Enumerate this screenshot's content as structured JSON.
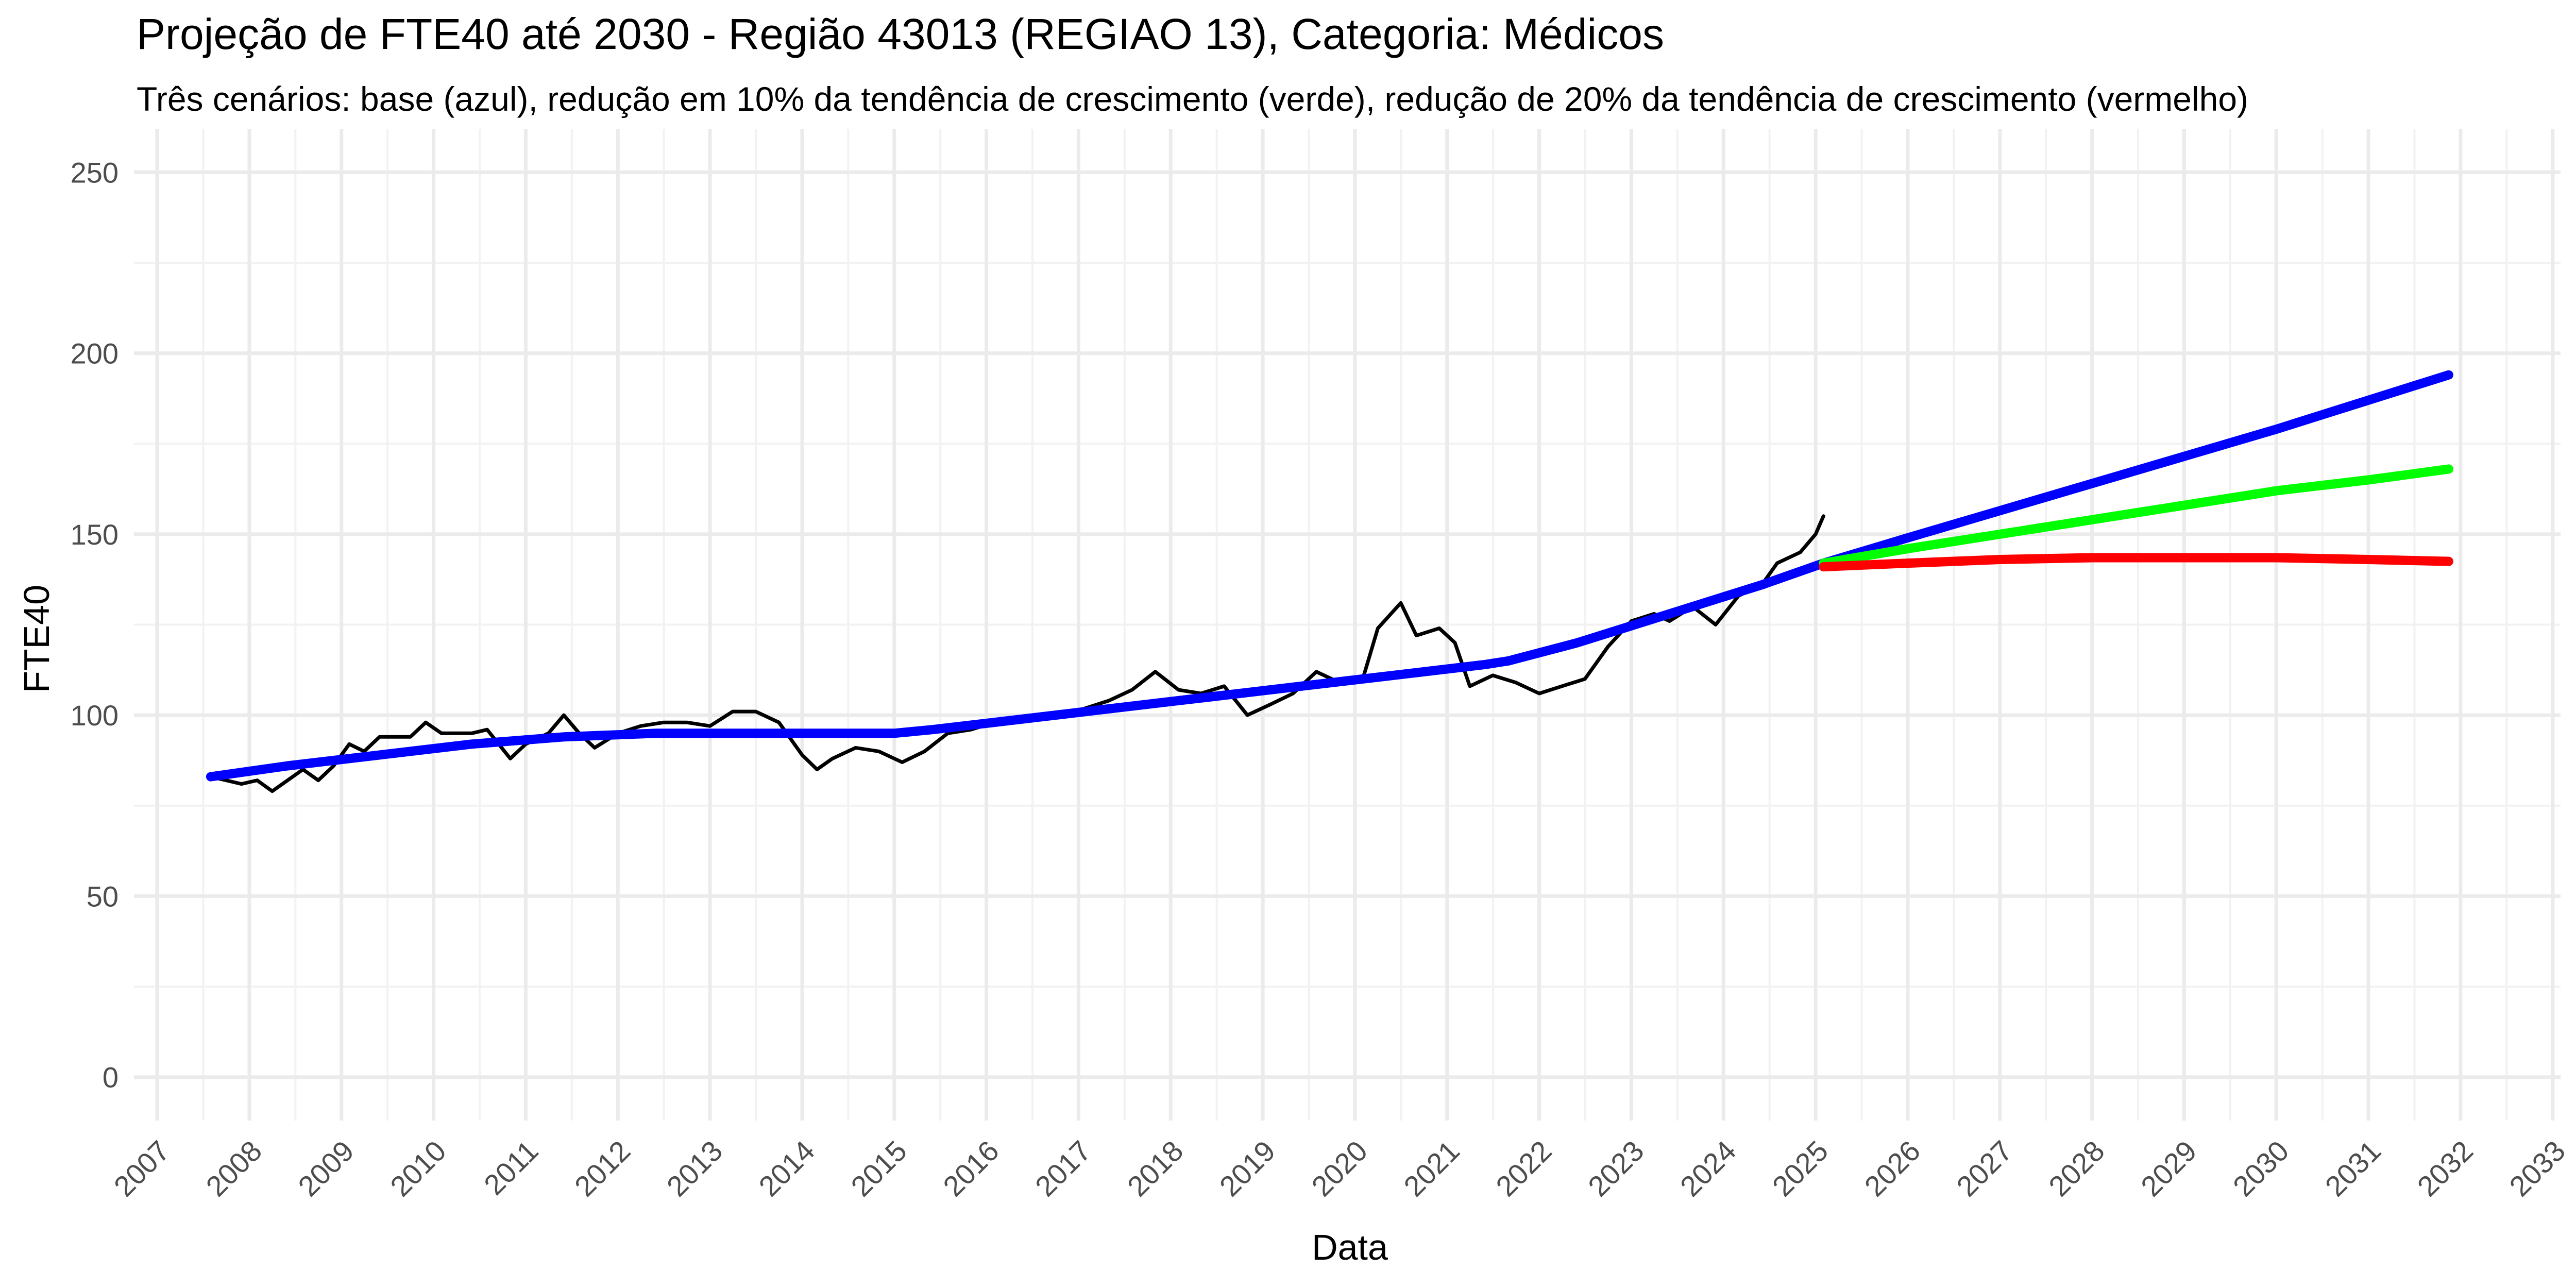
{
  "chart_data": {
    "type": "line",
    "title": "Projeção de FTE40 até 2030 - Região 43013 (REGIAO 13), Categoria: Médicos",
    "subtitle": "Três cenários: base (azul), redução em 10% da tendência de crescimento (verde), redução de 20% da tendência de crescimento (vermelho)",
    "xlabel": "Data",
    "ylabel": "FTE40",
    "xlim": [
      "2006-10-01",
      "2033-02-01"
    ],
    "ylim": [
      -12,
      262
    ],
    "y_ticks": [
      0,
      50,
      100,
      150,
      200,
      250
    ],
    "x_ticks": [
      "2007",
      "2008",
      "2009",
      "2010",
      "2011",
      "2012",
      "2013",
      "2014",
      "2015",
      "2016",
      "2017",
      "2018",
      "2019",
      "2020",
      "2021",
      "2022",
      "2023",
      "2024",
      "2025",
      "2026",
      "2027",
      "2028",
      "2029",
      "2030",
      "2031",
      "2032",
      "2033"
    ],
    "grid": true,
    "legend": "none",
    "series": [
      {
        "color": "#000000",
        "points": [
          [
            "2007-08-01",
            83
          ],
          [
            "2007-10-01",
            82
          ],
          [
            "2007-12-01",
            81
          ],
          [
            "2008-02-01",
            82
          ],
          [
            "2008-04-01",
            79
          ],
          [
            "2008-06-01",
            82
          ],
          [
            "2008-08-01",
            85
          ],
          [
            "2008-10-01",
            82
          ],
          [
            "2008-12-01",
            86
          ],
          [
            "2009-02-01",
            92
          ],
          [
            "2009-04-01",
            90
          ],
          [
            "2009-06-01",
            94
          ],
          [
            "2009-08-01",
            94
          ],
          [
            "2009-10-01",
            94
          ],
          [
            "2009-12-01",
            98
          ],
          [
            "2010-02-01",
            95
          ],
          [
            "2010-04-01",
            95
          ],
          [
            "2010-06-01",
            95
          ],
          [
            "2010-08-01",
            96
          ],
          [
            "2010-11-01",
            88
          ],
          [
            "2011-01-01",
            92
          ],
          [
            "2011-04-01",
            95
          ],
          [
            "2011-06-01",
            100
          ],
          [
            "2011-08-01",
            95
          ],
          [
            "2011-10-01",
            91
          ],
          [
            "2012-01-01",
            95
          ],
          [
            "2012-04-01",
            97
          ],
          [
            "2012-07-01",
            98
          ],
          [
            "2012-10-01",
            98
          ],
          [
            "2013-01-01",
            97
          ],
          [
            "2013-04-01",
            101
          ],
          [
            "2013-07-01",
            101
          ],
          [
            "2013-10-01",
            98
          ],
          [
            "2014-01-01",
            89
          ],
          [
            "2014-03-01",
            85
          ],
          [
            "2014-05-01",
            88
          ],
          [
            "2014-08-01",
            91
          ],
          [
            "2014-11-01",
            90
          ],
          [
            "2015-02-01",
            87
          ],
          [
            "2015-05-01",
            90
          ],
          [
            "2015-08-01",
            95
          ],
          [
            "2015-11-01",
            96
          ],
          [
            "2016-02-01",
            98
          ],
          [
            "2016-05-01",
            99
          ],
          [
            "2016-08-01",
            100
          ],
          [
            "2016-11-01",
            100
          ],
          [
            "2017-02-01",
            102
          ],
          [
            "2017-05-01",
            104
          ],
          [
            "2017-08-01",
            107
          ],
          [
            "2017-11-01",
            112
          ],
          [
            "2018-02-01",
            107
          ],
          [
            "2018-05-01",
            106
          ],
          [
            "2018-08-01",
            108
          ],
          [
            "2018-11-01",
            100
          ],
          [
            "2019-02-01",
            103
          ],
          [
            "2019-05-01",
            106
          ],
          [
            "2019-08-01",
            112
          ],
          [
            "2019-11-01",
            109
          ],
          [
            "2020-02-01",
            110
          ],
          [
            "2020-04-01",
            124
          ],
          [
            "2020-07-01",
            131
          ],
          [
            "2020-09-01",
            122
          ],
          [
            "2020-12-01",
            124
          ],
          [
            "2021-02-01",
            120
          ],
          [
            "2021-04-01",
            108
          ],
          [
            "2021-07-01",
            111
          ],
          [
            "2021-10-01",
            109
          ],
          [
            "2022-01-01",
            106
          ],
          [
            "2022-04-01",
            108
          ],
          [
            "2022-07-01",
            110
          ],
          [
            "2022-10-01",
            119
          ],
          [
            "2023-01-01",
            126
          ],
          [
            "2023-04-01",
            128
          ],
          [
            "2023-06-01",
            126
          ],
          [
            "2023-09-01",
            130
          ],
          [
            "2023-12-01",
            125
          ],
          [
            "2024-03-01",
            133
          ],
          [
            "2024-06-01",
            136
          ],
          [
            "2024-08-01",
            142
          ],
          [
            "2024-11-01",
            145
          ],
          [
            "2025-01-01",
            150
          ],
          [
            "2025-02-01",
            155
          ]
        ]
      },
      {
        "color": "#0000ff",
        "points": [
          [
            "2007-08-01",
            83
          ],
          [
            "2008-06-01",
            86
          ],
          [
            "2009-06-01",
            89
          ],
          [
            "2010-06-01",
            92
          ],
          [
            "2011-06-01",
            94
          ],
          [
            "2012-06-01",
            95
          ],
          [
            "2013-06-01",
            95
          ],
          [
            "2014-06-01",
            95
          ],
          [
            "2015-01-01",
            95
          ],
          [
            "2015-06-01",
            96
          ],
          [
            "2016-06-01",
            99
          ],
          [
            "2017-06-01",
            102
          ],
          [
            "2018-06-01",
            105
          ],
          [
            "2019-06-01",
            108
          ],
          [
            "2020-06-01",
            111
          ],
          [
            "2021-06-01",
            114
          ],
          [
            "2021-09-01",
            115
          ],
          [
            "2022-06-01",
            120
          ],
          [
            "2023-06-01",
            128
          ],
          [
            "2024-06-01",
            136
          ],
          [
            "2025-02-01",
            142
          ],
          [
            "2026-01-01",
            149
          ],
          [
            "2028-01-01",
            164
          ],
          [
            "2030-01-01",
            179
          ],
          [
            "2031-11-15",
            194
          ]
        ]
      },
      {
        "color": "#00ff00",
        "points": [
          [
            "2025-02-01",
            142
          ],
          [
            "2026-01-01",
            146
          ],
          [
            "2027-01-01",
            150
          ],
          [
            "2028-01-01",
            154
          ],
          [
            "2029-01-01",
            158
          ],
          [
            "2030-01-01",
            162
          ],
          [
            "2031-01-01",
            165
          ],
          [
            "2031-11-15",
            168
          ]
        ]
      },
      {
        "color": "#ff0000",
        "points": [
          [
            "2025-02-01",
            141
          ],
          [
            "2026-01-01",
            142
          ],
          [
            "2027-01-01",
            143
          ],
          [
            "2028-01-01",
            143.5
          ],
          [
            "2029-01-01",
            143.5
          ],
          [
            "2030-01-01",
            143.5
          ],
          [
            "2031-01-01",
            143
          ],
          [
            "2031-11-15",
            142.5
          ]
        ]
      }
    ]
  }
}
